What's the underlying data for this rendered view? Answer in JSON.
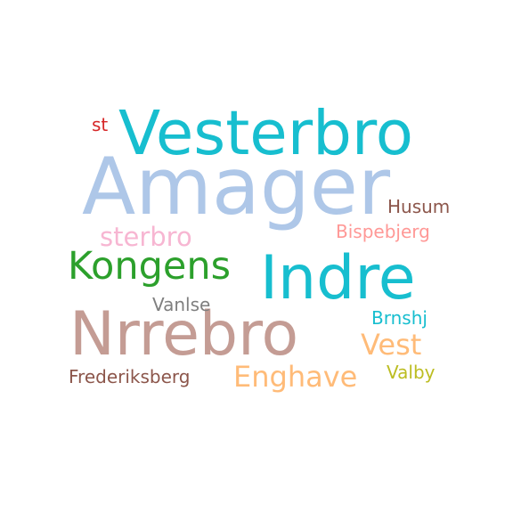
{
  "word_cloud": {
    "words": [
      {
        "text": "Amager",
        "color": "#aec7e8"
      },
      {
        "text": "Vesterbro",
        "color": "#17becf"
      },
      {
        "text": "Indre",
        "color": "#17becf"
      },
      {
        "text": "Nrrebro",
        "color": "#c49c94"
      },
      {
        "text": "Kongens",
        "color": "#2ca02c"
      },
      {
        "text": "sterbro",
        "color": "#f7b6d2"
      },
      {
        "text": "Enghave",
        "color": "#ffbb78"
      },
      {
        "text": "Vest",
        "color": "#ffbb78"
      },
      {
        "text": "Husum",
        "color": "#8c564b"
      },
      {
        "text": "Bispebjerg",
        "color": "#ff9896"
      },
      {
        "text": "Brnshj",
        "color": "#17becf"
      },
      {
        "text": "Vanlse",
        "color": "#7f7f7f"
      },
      {
        "text": "Frederiksberg",
        "color": "#8c564b"
      },
      {
        "text": "Valby",
        "color": "#bcbd22"
      },
      {
        "text": "st",
        "color": "#d62728"
      }
    ]
  }
}
